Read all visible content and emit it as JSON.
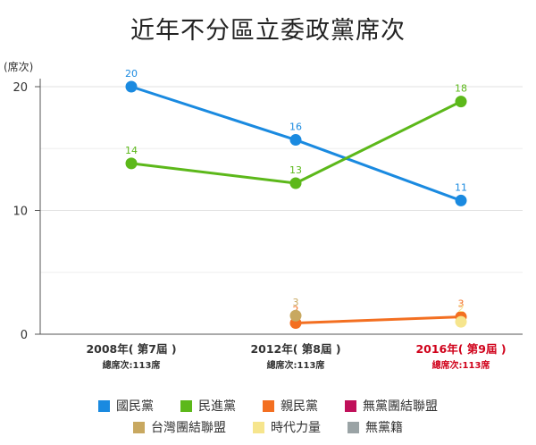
{
  "chart_data": {
    "type": "line",
    "title": "近年不分區立委政黨席次",
    "ylabel": "(席次)",
    "ylim": [
      0,
      23
    ],
    "yticks": [
      0,
      10,
      20
    ],
    "categories": [
      {
        "label": "2008年( 第7屆 )",
        "sub": "總席次:113席",
        "highlight": false
      },
      {
        "label": "2012年( 第8屆 )",
        "sub": "總席次:113席",
        "highlight": false
      },
      {
        "label": "2016年( 第9屆 )",
        "sub": "總席次:113席",
        "highlight": true
      }
    ],
    "series": [
      {
        "name": "國民黨",
        "color": "#1a8ae0",
        "values": [
          20,
          16,
          11
        ],
        "points": [
          20,
          15.7,
          10.8
        ]
      },
      {
        "name": "民進黨",
        "color": "#5cb81a",
        "values": [
          14,
          13,
          18
        ],
        "points": [
          13.8,
          12.2,
          18.8
        ]
      },
      {
        "name": "親民黨",
        "color": "#f36f21",
        "values": [
          null,
          2,
          3
        ],
        "points": [
          null,
          0.9,
          1.4
        ]
      },
      {
        "name": "台灣團結聯盟",
        "color": "#c8a860",
        "values": [
          null,
          3,
          null
        ],
        "points": [
          null,
          1.5,
          null
        ]
      },
      {
        "name": "時代力量",
        "color": "#f6e58d",
        "values": [
          null,
          null,
          2
        ],
        "points": [
          null,
          null,
          1.0
        ]
      }
    ],
    "highlight_color": "#d0021b"
  },
  "legend": {
    "row1": [
      {
        "name": "國民黨",
        "color": "#1a8ae0"
      },
      {
        "name": "民進黨",
        "color": "#5cb81a"
      },
      {
        "name": "親民黨",
        "color": "#f36f21"
      },
      {
        "name": "無黨團結聯盟",
        "color": "#c0105a"
      }
    ],
    "row2": [
      {
        "name": "台灣團結聯盟",
        "color": "#c8a860"
      },
      {
        "name": "時代力量",
        "color": "#f6e58d"
      },
      {
        "name": "無黨籍",
        "color": "#9aa3a5"
      }
    ]
  }
}
